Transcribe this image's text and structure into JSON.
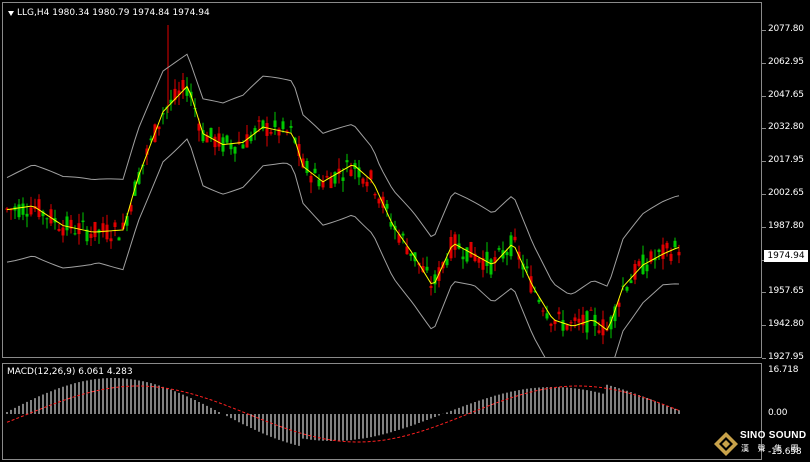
{
  "main": {
    "header": "LLG,H4  1980.34 1980.79 1974.84 1974.94",
    "price_axis": [
      "2077.80",
      "2062.95",
      "2047.65",
      "2032.80",
      "2017.95",
      "2002.65",
      "1987.80",
      "1972.95",
      "1957.65",
      "1942.80",
      "1927.95"
    ],
    "current_price": "1974.94"
  },
  "macd": {
    "header": "MACD(12,26,9) 6.061 4.283",
    "axis": [
      "16.718",
      "0.00",
      "-15.658"
    ]
  },
  "logo": {
    "name": "SINO SOUND",
    "subtitle": "漢 聲 集 團"
  },
  "colors": {
    "bull": "#ffffff",
    "bear_up": "#e00000",
    "bear_down": "#00c800",
    "ma": "#ffff00",
    "band": "#a0a0a0",
    "signal": "#ff2020"
  }
}
